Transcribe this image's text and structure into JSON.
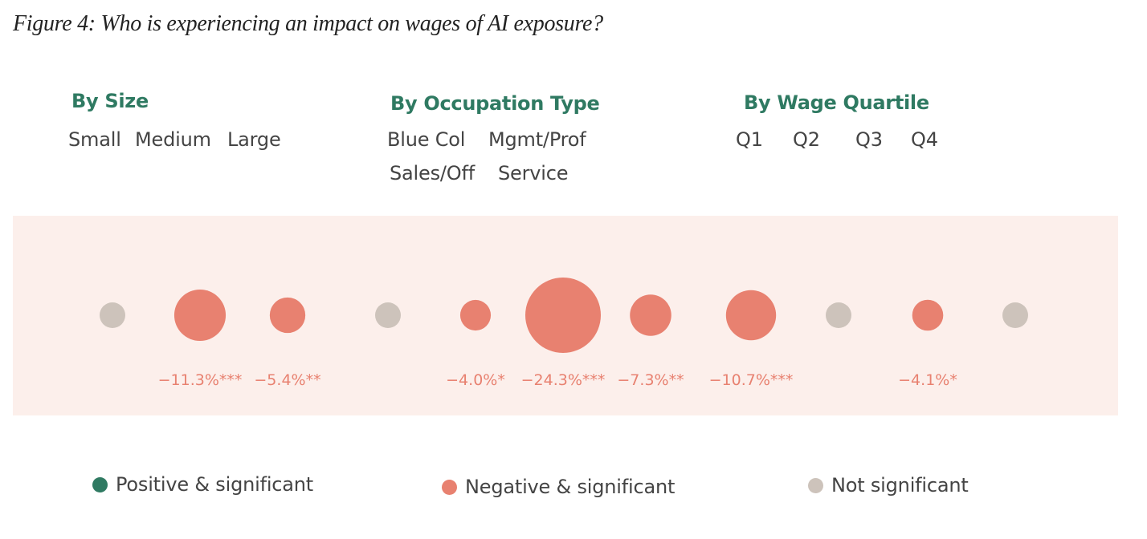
{
  "title": "Figure 4: Who is experiencing an impact on wages of AI exposure?",
  "colors": {
    "positive": "#2f7a62",
    "negative": "#e88170",
    "not_significant": "#cdc3bb",
    "heading": "#2f7a62",
    "band": "#fcefeb",
    "value_label": "#e88170"
  },
  "groups": [
    {
      "heading": "By Size",
      "categories": [
        "Small",
        "Medium",
        "Large"
      ]
    },
    {
      "heading": "By Occupation Type",
      "categories": [
        "Blue Col",
        "Mgmt/Prof",
        "Sales/Off",
        "Service"
      ]
    },
    {
      "heading": "By Wage Quartile",
      "categories": [
        "Q1",
        "Q2",
        "Q3",
        "Q4"
      ]
    }
  ],
  "legend": [
    {
      "label": "Positive & significant",
      "color": "#2f7a62"
    },
    {
      "label": "Negative & significant",
      "color": "#e88170"
    },
    {
      "label": "Not significant",
      "color": "#cdc3bb"
    }
  ],
  "chart_data": {
    "type": "scatter",
    "title": "Figure 4: Who is experiencing an impact on wages of AI exposure?",
    "encoding": "bubble area proportional to effect magnitude; colour = significance",
    "points": [
      {
        "group": "By Size",
        "category": "Small",
        "value": null,
        "significance": "not significant",
        "label": ""
      },
      {
        "group": "By Size",
        "category": "Medium",
        "value": -11.3,
        "significance": "negative",
        "label": "−11.3%***"
      },
      {
        "group": "By Size",
        "category": "Large",
        "value": -5.4,
        "significance": "negative",
        "label": "−5.4%**"
      },
      {
        "group": "By Occupation Type",
        "category": "Blue Col",
        "value": null,
        "significance": "not significant",
        "label": ""
      },
      {
        "group": "By Occupation Type",
        "category": "Mgmt/Prof",
        "value": -4.0,
        "significance": "negative",
        "label": "−4.0%*"
      },
      {
        "group": "By Occupation Type",
        "category": "Sales/Off",
        "value": -24.3,
        "significance": "negative",
        "label": "−24.3%***"
      },
      {
        "group": "By Occupation Type",
        "category": "Service",
        "value": -7.3,
        "significance": "negative",
        "label": "−7.3%**"
      },
      {
        "group": "By Wage Quartile",
        "category": "Q1",
        "value": -10.7,
        "significance": "negative",
        "label": "−10.7%***"
      },
      {
        "group": "By Wage Quartile",
        "category": "Q2",
        "value": null,
        "significance": "not significant",
        "label": ""
      },
      {
        "group": "By Wage Quartile",
        "category": "Q3",
        "value": -4.1,
        "significance": "negative",
        "label": "−4.1%*"
      },
      {
        "group": "By Wage Quartile",
        "category": "Q4",
        "value": null,
        "significance": "not significant",
        "label": ""
      }
    ]
  }
}
